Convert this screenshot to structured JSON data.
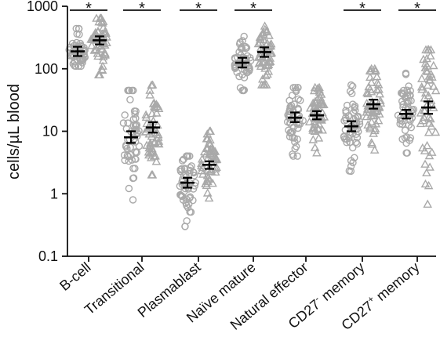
{
  "chart_data": {
    "type": "scatter",
    "yscale": "log",
    "ylim": [
      0.1,
      1000
    ],
    "ylabel": "cells/µL blood",
    "yticks": [
      "0.1",
      "1",
      "10",
      "100",
      "1000"
    ],
    "categories": [
      {
        "label": "B-cell"
      },
      {
        "label": "Transitional"
      },
      {
        "label": "Plasmablast"
      },
      {
        "label": "Naïve mature"
      },
      {
        "label": "Natural effector"
      },
      {
        "label": "CD27",
        "sup": "-",
        "rest": " memory"
      },
      {
        "label": "CD27",
        "sup": "+",
        "rest": " memory"
      }
    ],
    "series": [
      {
        "marker": "circle"
      },
      {
        "marker": "triangle"
      }
    ],
    "groups": [
      {
        "circle": {
          "mean": 190,
          "lo": 160,
          "hi": 225,
          "min": 110,
          "max": 440
        },
        "triangle": {
          "mean": 285,
          "lo": 245,
          "hi": 330,
          "min": 80,
          "max": 640
        },
        "significance": "*"
      },
      {
        "circle": {
          "mean": 8,
          "lo": 6.5,
          "hi": 10,
          "min": 0.8,
          "max": 45
        },
        "triangle": {
          "mean": 11.5,
          "lo": 9.5,
          "hi": 14,
          "min": 2,
          "max": 55
        },
        "significance": "*"
      },
      {
        "circle": {
          "mean": 1.5,
          "lo": 1.25,
          "hi": 1.8,
          "min": 0.3,
          "max": 4
        },
        "triangle": {
          "mean": 2.9,
          "lo": 2.5,
          "hi": 3.3,
          "min": 0.85,
          "max": 10
        },
        "significance": "*"
      },
      {
        "circle": {
          "mean": 125,
          "lo": 105,
          "hi": 150,
          "min": 45,
          "max": 330
        },
        "triangle": {
          "mean": 185,
          "lo": 155,
          "hi": 220,
          "min": 55,
          "max": 480
        },
        "significance": "*"
      },
      {
        "circle": {
          "mean": 16.5,
          "lo": 14,
          "hi": 20,
          "min": 4,
          "max": 50
        },
        "triangle": {
          "mean": 18,
          "lo": 15.5,
          "hi": 21,
          "min": 4.5,
          "max": 50
        },
        "significance": ""
      },
      {
        "circle": {
          "mean": 12,
          "lo": 10,
          "hi": 14.5,
          "min": 2.3,
          "max": 55
        },
        "triangle": {
          "mean": 27,
          "lo": 23,
          "hi": 32,
          "min": 5,
          "max": 100
        },
        "significance": "*"
      },
      {
        "circle": {
          "mean": 19,
          "lo": 16,
          "hi": 22,
          "min": 4.5,
          "max": 85
        },
        "triangle": {
          "mean": 24,
          "lo": 19,
          "hi": 30,
          "min": 0.68,
          "max": 200
        },
        "significance": "*"
      }
    ],
    "point_count": 55,
    "grid": false,
    "legend": "none",
    "marker_color": "#a9a9a9",
    "error_color": "#000000"
  }
}
